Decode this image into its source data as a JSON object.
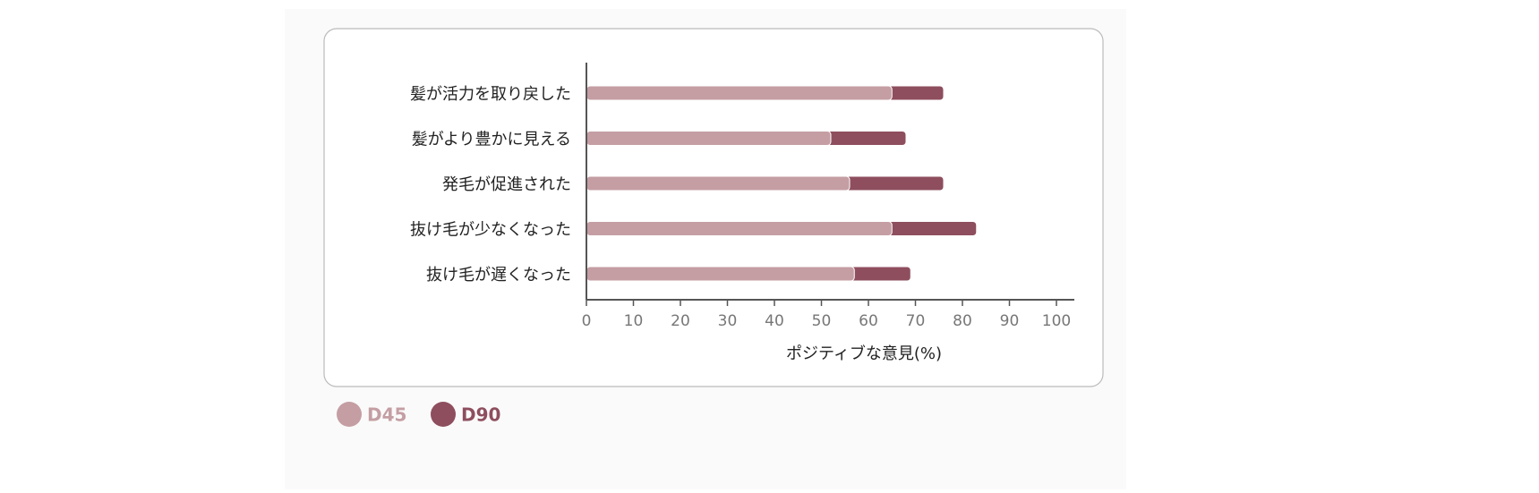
{
  "chart_data": {
    "type": "bar",
    "orientation": "horizontal",
    "overlap": true,
    "categories": [
      "髪が活力を取り戻した",
      "髪がより豊かに見える",
      "発毛が促進された",
      "抜け毛が少なくなった",
      "抜け毛が遅くなった"
    ],
    "series": [
      {
        "name": "D45",
        "color": "#c49ea3",
        "values": [
          65,
          52,
          56,
          65,
          57
        ]
      },
      {
        "name": "D90",
        "color": "#8e4e5e",
        "values": [
          76,
          68,
          76,
          83,
          69
        ]
      }
    ],
    "xlim": [
      0,
      100
    ],
    "xticks": [
      0,
      10,
      20,
      30,
      40,
      50,
      60,
      70,
      80,
      90,
      100
    ],
    "x_label": "ポジティブな意見(%)"
  }
}
